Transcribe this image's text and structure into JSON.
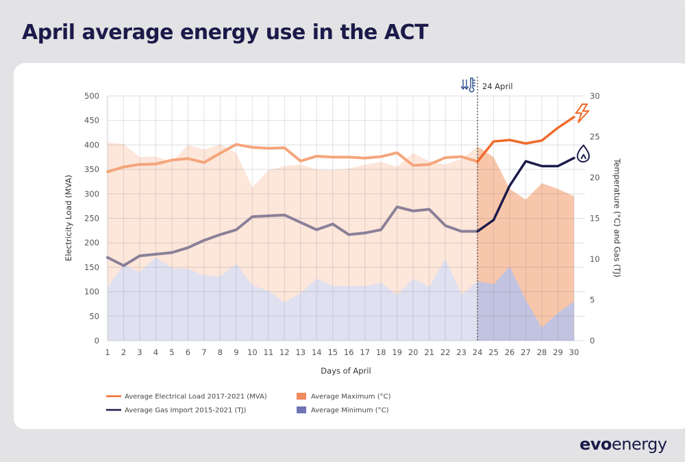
{
  "title": "April average energy use in the ACT",
  "logo": {
    "bold": "evo",
    "regular": "energy"
  },
  "annotation": {
    "label": "24 April",
    "icon": "thermometer-down-icon",
    "day": 24
  },
  "chart_data": {
    "type": "line",
    "title": "April average energy use in the ACT",
    "xlabel": "Days of April",
    "ylabel_left": "Electricity Load (MVA)",
    "ylabel_right": "Temperature  (°C) and Gas (TJ)",
    "x": [
      1,
      2,
      3,
      4,
      5,
      6,
      7,
      8,
      9,
      10,
      11,
      12,
      13,
      14,
      15,
      16,
      17,
      18,
      19,
      20,
      21,
      22,
      23,
      24,
      25,
      26,
      27,
      28,
      29,
      30
    ],
    "ylim_left": [
      0,
      500
    ],
    "yticks_left": [
      0,
      50,
      100,
      150,
      200,
      250,
      300,
      350,
      400,
      450,
      500
    ],
    "ylim_right": [
      0,
      30
    ],
    "yticks_right": [
      0,
      5,
      10,
      15,
      20,
      25,
      30
    ],
    "grid": true,
    "legend_position": "bottom",
    "series": [
      {
        "name": "Average Electrical Load 2017-2021 (MVA)",
        "axis": "left",
        "kind": "line",
        "color": "#f06a2a",
        "color_before": "#f4a57c",
        "values": [
          345,
          355,
          360,
          361,
          369,
          372,
          364,
          383,
          401,
          395,
          393,
          394,
          367,
          377,
          375,
          375,
          373,
          376,
          384,
          358,
          360,
          374,
          376,
          366,
          407,
          410,
          403,
          409,
          435,
          457
        ]
      },
      {
        "name": "Average Gas Import 2015-2021 (TJ)",
        "axis": "right",
        "kind": "line",
        "color": "#1b1a4a",
        "color_before": "#8a8098",
        "values": [
          10.2,
          9.2,
          10.4,
          10.6,
          10.8,
          11.4,
          12.3,
          13.0,
          13.6,
          15.2,
          15.3,
          15.4,
          14.5,
          13.6,
          14.3,
          13.0,
          13.2,
          13.6,
          16.4,
          15.9,
          16.1,
          14.1,
          13.4,
          13.4,
          14.8,
          19.0,
          22.0,
          21.4,
          21.4,
          22.4
        ]
      },
      {
        "name": "Average Maximum (°C)",
        "axis": "right",
        "kind": "area",
        "color": "#f08a60",
        "values": [
          24.3,
          24.1,
          22.5,
          22.6,
          21.9,
          24.0,
          23.4,
          24.1,
          23.0,
          18.8,
          20.9,
          21.4,
          21.6,
          21.0,
          20.9,
          21.1,
          21.6,
          21.9,
          21.3,
          23.0,
          22.0,
          21.6,
          22.3,
          23.8,
          22.5,
          18.6,
          17.3,
          19.3,
          18.6,
          17.7
        ]
      },
      {
        "name": "Average Minimum (°C)",
        "axis": "right",
        "kind": "area",
        "color": "#6f73b5",
        "values": [
          6.6,
          9.3,
          8.4,
          10.2,
          8.9,
          8.8,
          8.0,
          7.9,
          9.4,
          6.8,
          6.1,
          4.7,
          5.8,
          7.6,
          6.7,
          6.7,
          6.7,
          7.1,
          5.6,
          7.6,
          6.6,
          10.0,
          5.6,
          7.3,
          6.9,
          9.1,
          5.0,
          1.6,
          3.4,
          4.8
        ]
      }
    ],
    "legend": [
      {
        "label": "Average Electrical Load 2017-2021 (MVA)",
        "type": "line",
        "color": "#f06a2a"
      },
      {
        "label": "Average Gas Import 2015-2021 (TJ)",
        "type": "line",
        "color": "#1b1a4a"
      },
      {
        "label": "Average Maximum (°C)",
        "type": "swatch",
        "color": "#f08a60"
      },
      {
        "label": "Average Minimum (°C)",
        "type": "swatch",
        "color": "#6f73b5"
      }
    ],
    "end_icons": [
      "lightning-icon",
      "gas-flame-icon"
    ]
  }
}
